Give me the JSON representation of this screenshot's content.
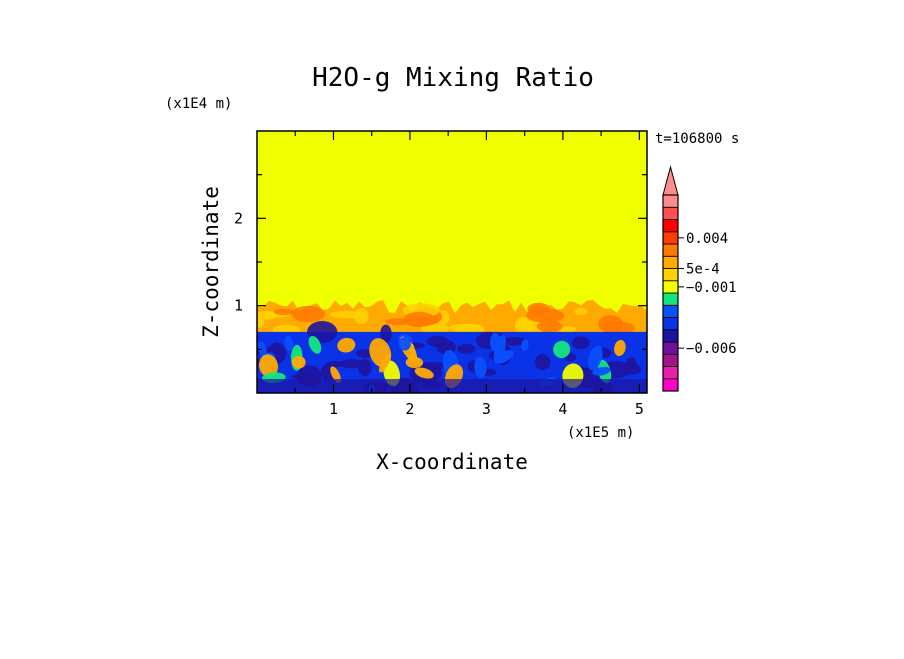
{
  "chart_data": {
    "type": "heatmap",
    "title": "H2O-g Mixing Ratio",
    "xlabel": "X-coordinate",
    "ylabel": "Z-coordinate",
    "x_scale_label": "(x1E5 m)",
    "y_scale_label": "(x1E4 m)",
    "time_label": "t=106800 s",
    "xlim": [
      0,
      5.1
    ],
    "ylim": [
      0,
      3.0
    ],
    "x_ticks": [
      {
        "value": 1,
        "label": "1"
      },
      {
        "value": 2,
        "label": "2"
      },
      {
        "value": 3,
        "label": "3"
      },
      {
        "value": 4,
        "label": "4"
      },
      {
        "value": 5,
        "label": "5"
      }
    ],
    "y_ticks": [
      {
        "value": 1,
        "label": "1"
      },
      {
        "value": 2,
        "label": "2"
      }
    ],
    "fields": {
      "upper_value": 0.0,
      "upper_color": "#f0ff00",
      "mixed_layer_top": 1.05,
      "mixed_layer_base": 0.7,
      "mixed_layer_value": 0.0015,
      "boundary_layer_value": -0.002
    },
    "colorbar": {
      "levels": [
        {
          "color": "#ff00c8"
        },
        {
          "color": "#e61eaa"
        },
        {
          "color": "#a0148c"
        },
        {
          "color": "#6e0fa0"
        },
        {
          "color": "#1e14a0"
        },
        {
          "color": "#0a32e6"
        },
        {
          "color": "#0a50ff"
        },
        {
          "color": "#14e67d"
        },
        {
          "color": "#f0ff00"
        },
        {
          "color": "#ffd200"
        },
        {
          "color": "#ffaa00"
        },
        {
          "color": "#ff7800"
        },
        {
          "color": "#ff3c00"
        },
        {
          "color": "#ff0000"
        },
        {
          "color": "#ff5050"
        },
        {
          "color": "#ff8c8c"
        }
      ],
      "labels": [
        {
          "text": "0.004",
          "level": 12
        },
        {
          "text": "5e-4",
          "level": 9.5
        },
        {
          "text": "−0.001",
          "level": 8
        },
        {
          "text": "−0.006",
          "level": 3
        }
      ]
    }
  }
}
